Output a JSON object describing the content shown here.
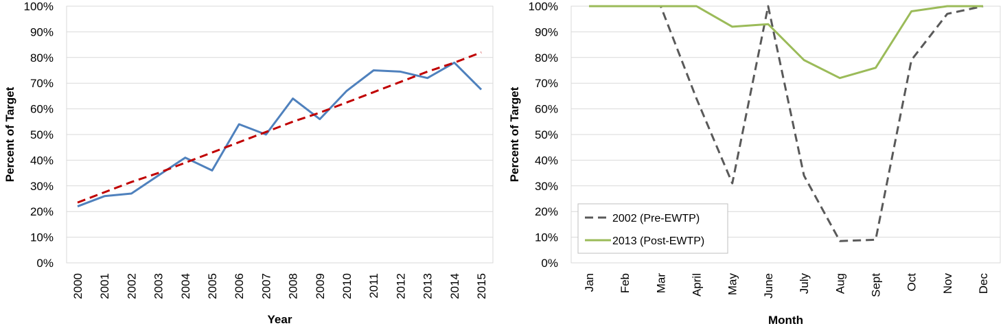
{
  "chart_data": [
    {
      "type": "line",
      "xlabel": "Year",
      "ylabel": "Percent of Target",
      "categories": [
        "2000",
        "2001",
        "2002",
        "2003",
        "2004",
        "2005",
        "2006",
        "2007",
        "2008",
        "2009",
        "2010",
        "2011",
        "2012",
        "2013",
        "2014",
        "2015"
      ],
      "y_ticks": [
        "0%",
        "10%",
        "20%",
        "30%",
        "40%",
        "50%",
        "60%",
        "70%",
        "80%",
        "90%",
        "100%"
      ],
      "ylim": [
        0,
        100
      ],
      "grid": true,
      "series": [
        {
          "values": [
            22,
            26,
            27,
            34,
            41,
            36,
            54,
            50,
            64,
            56,
            67,
            75,
            74.5,
            72,
            78,
            67.5
          ],
          "color": "#4F81BD",
          "style": "solid"
        },
        {
          "values": [
            23.5,
            27.5,
            31.5,
            35,
            39,
            43,
            47,
            51,
            55,
            58.5,
            62.5,
            66.5,
            70.5,
            74.5,
            78,
            82
          ],
          "color": "#C00000",
          "style": "dashed"
        }
      ]
    },
    {
      "type": "line",
      "xlabel": "Month",
      "ylabel": "Percent of Target",
      "categories": [
        "Jan",
        "Feb",
        "Mar",
        "April",
        "May",
        "June",
        "July",
        "Aug",
        "Sept",
        "Oct",
        "Nov",
        "Dec"
      ],
      "y_ticks": [
        "0%",
        "10%",
        "20%",
        "30%",
        "40%",
        "50%",
        "60%",
        "70%",
        "80%",
        "90%",
        "100%"
      ],
      "ylim": [
        0,
        100
      ],
      "grid": true,
      "legend_position": "bottom-left",
      "series": [
        {
          "name": "2002 (Pre-EWTP)",
          "values": [
            100,
            100,
            100,
            64,
            31,
            100,
            34,
            8.5,
            9,
            79,
            97,
            100
          ],
          "color": "#595959",
          "style": "dashed"
        },
        {
          "name": "2013 (Post-EWTP)",
          "values": [
            100,
            100,
            100,
            100,
            92,
            93,
            79,
            72,
            76,
            98,
            100,
            100
          ],
          "color": "#9BBB59",
          "style": "solid"
        }
      ]
    }
  ]
}
